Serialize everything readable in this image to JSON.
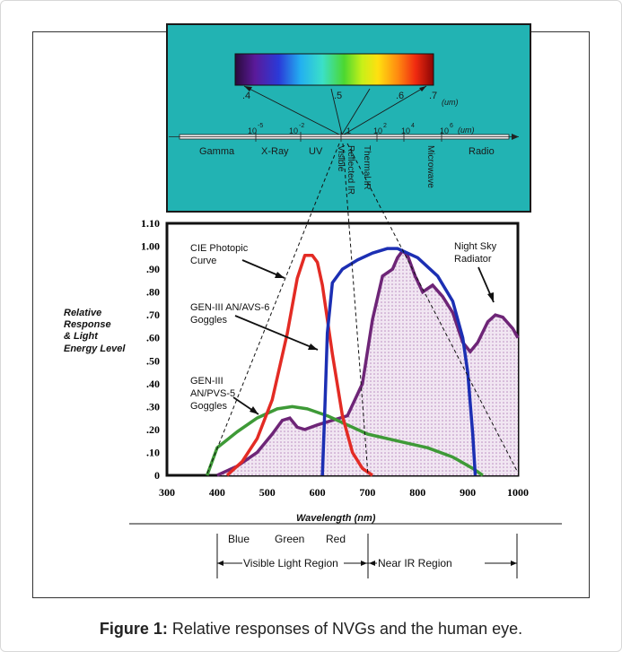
{
  "caption": {
    "label": "Figure 1:",
    "text": " Relative responses of NVGs and the human eye."
  },
  "spectrum": {
    "wavelength_ticks": [
      ".4",
      ".5",
      ".6",
      ".7"
    ],
    "wavelength_unit": "(um)",
    "power_ticks": [
      "10",
      "-5",
      "10",
      "-2",
      "1",
      "10",
      "2",
      "10",
      "4",
      "10",
      "6"
    ],
    "scale_unit": "(um)",
    "bands": [
      "Gamma",
      "X-Ray",
      "UV",
      "Radio"
    ],
    "rotated_bands": [
      "Visible",
      "Reflected IR",
      "Thermal IR",
      "Microwave"
    ]
  },
  "annotations": {
    "cie_1": "CIE Photopic",
    "cie_2": "Curve",
    "avs6_1": "GEN-III AN/AVS-6",
    "avs6_2": "Goggles",
    "pvs5_1": "GEN-III",
    "pvs5_2": "AN/PVS-5",
    "pvs5_3": "Goggles",
    "night_1": "Night Sky",
    "night_2": "Radiator"
  },
  "regions": {
    "blue": "Blue",
    "green": "Green",
    "red": "Red",
    "visible": "Visible Light Region",
    "near_ir": "Near IR Region"
  },
  "chart_data": {
    "type": "line",
    "ylabel": [
      "Relative",
      "Response",
      "& Light",
      "Energy Level"
    ],
    "xlabel": "Wavelength (nm)",
    "xlim": [
      300,
      1000
    ],
    "ylim": [
      0,
      1.1
    ],
    "x_ticks": [
      "300",
      "400",
      "500",
      "600",
      "700",
      "800",
      "900",
      "1000"
    ],
    "y_ticks": [
      "0",
      ".10",
      ".20",
      ".30",
      ".40",
      ".50",
      ".60",
      ".70",
      ".80",
      ".90",
      "1.00",
      "1.10"
    ],
    "series": [
      {
        "color": "#e32b24",
        "points": [
          [
            420,
            0
          ],
          [
            450,
            0.06
          ],
          [
            480,
            0.16
          ],
          [
            510,
            0.33
          ],
          [
            540,
            0.62
          ],
          [
            560,
            0.86
          ],
          [
            575,
            0.96
          ],
          [
            590,
            0.96
          ],
          [
            600,
            0.93
          ],
          [
            610,
            0.83
          ],
          [
            630,
            0.53
          ],
          [
            650,
            0.26
          ],
          [
            670,
            0.1
          ],
          [
            690,
            0.03
          ],
          [
            710,
            0
          ]
        ]
      },
      {
        "color": "#1c2fb3",
        "points": [
          [
            610,
            0
          ],
          [
            615,
            0.3
          ],
          [
            620,
            0.62
          ],
          [
            630,
            0.84
          ],
          [
            650,
            0.9
          ],
          [
            680,
            0.94
          ],
          [
            710,
            0.97
          ],
          [
            740,
            0.99
          ],
          [
            760,
            0.99
          ],
          [
            800,
            0.95
          ],
          [
            840,
            0.87
          ],
          [
            870,
            0.76
          ],
          [
            890,
            0.6
          ],
          [
            900,
            0.45
          ],
          [
            910,
            0.18
          ],
          [
            915,
            0
          ]
        ]
      },
      {
        "color": "#3e9a37",
        "points": [
          [
            380,
            0
          ],
          [
            400,
            0.12
          ],
          [
            440,
            0.19
          ],
          [
            480,
            0.25
          ],
          [
            520,
            0.29
          ],
          [
            550,
            0.3
          ],
          [
            580,
            0.29
          ],
          [
            620,
            0.26
          ],
          [
            660,
            0.22
          ],
          [
            700,
            0.18
          ],
          [
            760,
            0.15
          ],
          [
            820,
            0.12
          ],
          [
            870,
            0.08
          ],
          [
            910,
            0.03
          ],
          [
            930,
            0
          ]
        ]
      },
      {
        "color": "#6e2577",
        "fill": true,
        "points": [
          [
            400,
            0
          ],
          [
            440,
            0.04
          ],
          [
            480,
            0.1
          ],
          [
            510,
            0.18
          ],
          [
            530,
            0.24
          ],
          [
            545,
            0.25
          ],
          [
            560,
            0.21
          ],
          [
            575,
            0.2
          ],
          [
            600,
            0.22
          ],
          [
            630,
            0.24
          ],
          [
            660,
            0.26
          ],
          [
            690,
            0.4
          ],
          [
            710,
            0.68
          ],
          [
            730,
            0.87
          ],
          [
            750,
            0.9
          ],
          [
            760,
            0.95
          ],
          [
            770,
            0.98
          ],
          [
            780,
            0.96
          ],
          [
            795,
            0.87
          ],
          [
            810,
            0.8
          ],
          [
            830,
            0.83
          ],
          [
            850,
            0.78
          ],
          [
            870,
            0.71
          ],
          [
            890,
            0.58
          ],
          [
            905,
            0.54
          ],
          [
            920,
            0.58
          ],
          [
            940,
            0.67
          ],
          [
            955,
            0.7
          ],
          [
            970,
            0.69
          ],
          [
            990,
            0.64
          ],
          [
            1000,
            0.6
          ],
          [
            1000,
            0
          ]
        ]
      }
    ]
  }
}
